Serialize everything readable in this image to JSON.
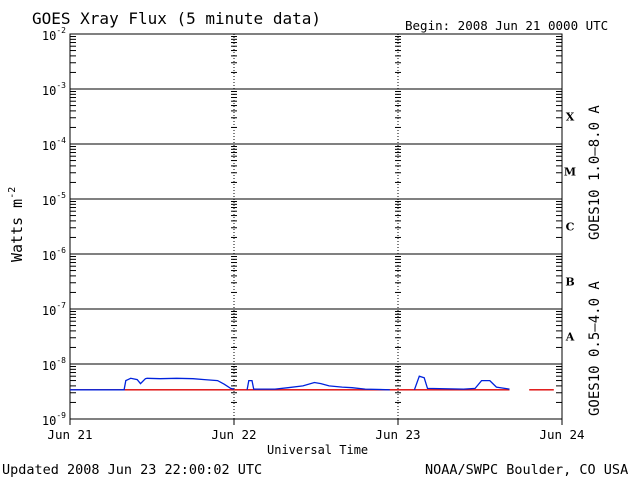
{
  "chart_data": {
    "type": "line",
    "title": "GOES Xray Flux (5 minute data)",
    "begin_label": "Begin:  2008 Jun 21 0000 UTC",
    "xlabel": "Universal Time",
    "ylabel": "Watts m",
    "ylabel_exponent": "-2",
    "x_ticks": [
      "Jun 21",
      "Jun 22",
      "Jun 23",
      "Jun 24"
    ],
    "xlim_days": [
      0,
      3
    ],
    "y_scale": "log",
    "ylim": [
      1e-09,
      0.01
    ],
    "y_ticks": [
      {
        "base": "10",
        "exp": "-2"
      },
      {
        "base": "10",
        "exp": "-3"
      },
      {
        "base": "10",
        "exp": "-4"
      },
      {
        "base": "10",
        "exp": "-5"
      },
      {
        "base": "10",
        "exp": "-6"
      },
      {
        "base": "10",
        "exp": "-7"
      },
      {
        "base": "10",
        "exp": "-8"
      },
      {
        "base": "10",
        "exp": "-9"
      }
    ],
    "flare_classes": [
      {
        "label": "X",
        "exp": -3.5
      },
      {
        "label": "M",
        "exp": -4.5
      },
      {
        "label": "C",
        "exp": -5.5
      },
      {
        "label": "B",
        "exp": -6.5
      },
      {
        "label": "A",
        "exp": -7.5
      }
    ],
    "series": [
      {
        "name": "GOES10 1.0–8.0 A",
        "color": "#dd0000",
        "points": [
          [
            0.0,
            3.4e-09
          ],
          [
            2.68,
            3.4e-09
          ]
        ],
        "points_b": [
          [
            2.8,
            3.4e-09
          ],
          [
            2.95,
            3.4e-09
          ]
        ]
      },
      {
        "name": "GOES10 0.5–4.0 A",
        "color": "#0022dd",
        "points": [
          [
            0.0,
            3.4e-09
          ],
          [
            0.33,
            3.4e-09
          ],
          [
            0.34,
            5e-09
          ],
          [
            0.37,
            5.5e-09
          ],
          [
            0.41,
            5.2e-09
          ],
          [
            0.43,
            4.4e-09
          ],
          [
            0.46,
            5.4e-09
          ],
          [
            0.47,
            5.5e-09
          ],
          [
            0.55,
            5.4e-09
          ],
          [
            0.65,
            5.5e-09
          ],
          [
            0.75,
            5.4e-09
          ],
          [
            0.82,
            5.2e-09
          ],
          [
            0.9,
            5e-09
          ],
          [
            0.94,
            4.3e-09
          ],
          [
            0.98,
            3.6e-09
          ],
          [
            1.0,
            3.5e-09
          ]
        ],
        "points_b": [
          [
            1.08,
            3.4e-09
          ],
          [
            1.09,
            5e-09
          ],
          [
            1.11,
            5e-09
          ],
          [
            1.12,
            3.5e-09
          ],
          [
            1.25,
            3.5e-09
          ],
          [
            1.33,
            3.7e-09
          ],
          [
            1.42,
            4e-09
          ],
          [
            1.49,
            4.6e-09
          ],
          [
            1.53,
            4.4e-09
          ],
          [
            1.58,
            4e-09
          ],
          [
            1.66,
            3.8e-09
          ],
          [
            1.72,
            3.7e-09
          ],
          [
            1.8,
            3.5e-09
          ],
          [
            1.95,
            3.4e-09
          ]
        ],
        "points_c": [
          [
            2.1,
            3.4e-09
          ],
          [
            2.13,
            6e-09
          ],
          [
            2.16,
            5.6e-09
          ],
          [
            2.18,
            3.6e-09
          ],
          [
            2.4,
            3.5e-09
          ],
          [
            2.47,
            3.6e-09
          ],
          [
            2.51,
            5e-09
          ],
          [
            2.56,
            5e-09
          ],
          [
            2.6,
            3.8e-09
          ],
          [
            2.68,
            3.5e-09
          ]
        ]
      }
    ]
  },
  "footer": {
    "updated": "Updated 2008 Jun 23 22:00:02 UTC",
    "source": "NOAA/SWPC Boulder, CO USA"
  }
}
